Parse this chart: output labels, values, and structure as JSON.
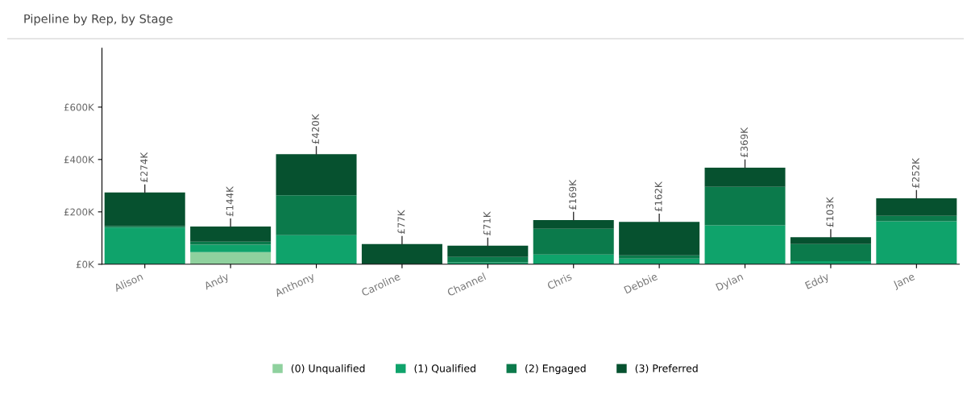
{
  "chart_data": {
    "type": "bar",
    "title": "Pipeline by Rep, by Stage",
    "stacked": true,
    "categories": [
      "Alison",
      "Andy",
      "Anthony",
      "Caroline",
      "Channel",
      "Chris",
      "Debbie",
      "Dylan",
      "Eddy",
      "Jane"
    ],
    "series": [
      {
        "name": "(0) Unqualified",
        "color": "#8fd19e",
        "values": [
          0,
          46000,
          0,
          0,
          0,
          0,
          0,
          0,
          0,
          0
        ]
      },
      {
        "name": "(1) Qualified",
        "color": "#0fa36b",
        "values": [
          140000,
          29000,
          111000,
          0,
          7000,
          37000,
          22000,
          149000,
          12000,
          164000
        ]
      },
      {
        "name": "(2) Engaged",
        "color": "#0b7a4b",
        "values": [
          6000,
          11000,
          152000,
          0,
          21000,
          99000,
          12000,
          147000,
          65000,
          21000
        ]
      },
      {
        "name": "(3) Preferred",
        "color": "#06512f",
        "values": [
          128000,
          58000,
          157000,
          77000,
          43000,
          33000,
          128000,
          73000,
          26000,
          67000
        ]
      }
    ],
    "totals": [
      "£274K",
      "£144K",
      "£420K",
      "£77K",
      "£71K",
      "£169K",
      "£162K",
      "£369K",
      "£103K",
      "£252K"
    ],
    "ylim": [
      0,
      825000
    ],
    "yticks": [
      {
        "value": 0,
        "label": "£0K"
      },
      {
        "value": 200000,
        "label": "£200K"
      },
      {
        "value": 400000,
        "label": "£400K"
      },
      {
        "value": 600000,
        "label": "£600K"
      }
    ],
    "grid": false,
    "legend": "bottom"
  }
}
